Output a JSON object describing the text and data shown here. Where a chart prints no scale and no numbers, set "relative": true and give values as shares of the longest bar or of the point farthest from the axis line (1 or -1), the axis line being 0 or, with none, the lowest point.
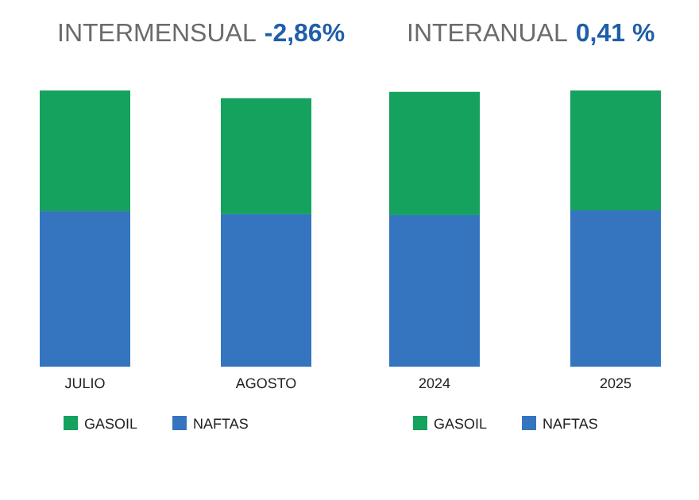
{
  "chart_data": [
    {
      "type": "bar",
      "title": "INTERMENSUAL",
      "subtitle": "-2,86%",
      "categories": [
        "JULIO",
        "AGOSTO"
      ],
      "stacked": true,
      "relative": true,
      "legend": "bottom left",
      "series": [
        {
          "name": "NAFTAS",
          "color": "#3575c0",
          "values": [
            0.563,
            0.552
          ]
        },
        {
          "name": "GASOIL",
          "color": "#14a25e",
          "values": [
            0.437,
            0.42
          ]
        }
      ]
    },
    {
      "type": "bar",
      "title": "INTERANUAL",
      "subtitle": "0,41 %",
      "categories": [
        "2024",
        "2025"
      ],
      "stacked": true,
      "relative": true,
      "legend": "bottom left",
      "series": [
        {
          "name": "NAFTAS",
          "color": "#3575c0",
          "values": [
            0.549,
            0.566
          ]
        },
        {
          "name": "GASOIL",
          "color": "#14a25e",
          "values": [
            0.446,
            0.434
          ]
        }
      ]
    }
  ]
}
